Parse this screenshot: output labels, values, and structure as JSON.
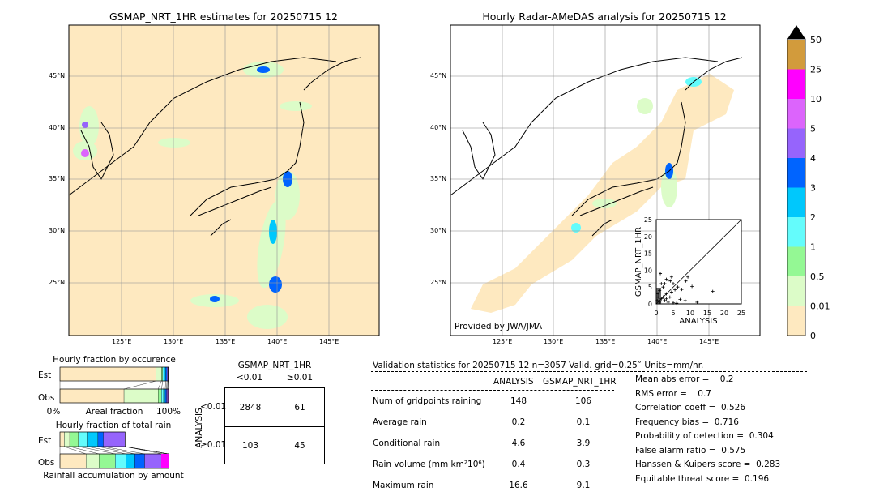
{
  "left_map": {
    "title": "GSMAP_NRT_1HR estimates for 20250715 12"
  },
  "right_map": {
    "title": "Hourly Radar-AMeDAS analysis for 20250715 12",
    "credit": "Provided by JWA/JMA"
  },
  "lat_labels": [
    "45°N",
    "40°N",
    "35°N",
    "30°N",
    "25°N"
  ],
  "lon_labels": [
    "125°E",
    "130°E",
    "135°E",
    "140°E",
    "145°E"
  ],
  "colorbar": {
    "labels": [
      "0",
      "0.01",
      "0.5",
      "1",
      "2",
      "3",
      "4",
      "5",
      "10",
      "25",
      "50"
    ],
    "colors": [
      "#fee9c0",
      "#dcfcc8",
      "#94f894",
      "#64fcfc",
      "#00c8fc",
      "#0064ff",
      "#9664fc",
      "#dc64fc",
      "#ff00ff",
      "#d29b3c"
    ],
    "extend_color": "#000000"
  },
  "chart_data": [
    {
      "type": "scatter",
      "xlabel": "ANALYSIS",
      "ylabel": "GSMAP_NRT_1HR",
      "xlim": [
        0,
        25
      ],
      "ylim": [
        0,
        25
      ],
      "xticks": [
        "0",
        "5",
        "10",
        "15",
        "20",
        "25"
      ],
      "yticks": [
        "0",
        "5",
        "10",
        "15",
        "20",
        "25"
      ],
      "points": [
        [
          1.2,
          9
        ],
        [
          3,
          7.3
        ],
        [
          3.5,
          7
        ],
        [
          4.5,
          8
        ],
        [
          4.2,
          6.8
        ],
        [
          5,
          6
        ],
        [
          9.3,
          8
        ],
        [
          8.7,
          6.8
        ],
        [
          10.5,
          5.2
        ],
        [
          16.6,
          3.7
        ],
        [
          7.5,
          4.3
        ],
        [
          5.5,
          4.2
        ],
        [
          4.5,
          3.5
        ],
        [
          6.3,
          5
        ],
        [
          2.5,
          6
        ],
        [
          1.5,
          6
        ],
        [
          2,
          5
        ],
        [
          7,
          1.3
        ],
        [
          8.5,
          1
        ],
        [
          12,
          0.5
        ],
        [
          3,
          3
        ],
        [
          2,
          2
        ],
        [
          1,
          4
        ],
        [
          0.5,
          3
        ],
        [
          1.5,
          1.5
        ],
        [
          2.5,
          1
        ],
        [
          3.5,
          0.5
        ],
        [
          5,
          0.3
        ],
        [
          6,
          0.2
        ],
        [
          0.3,
          1
        ],
        [
          0.5,
          2
        ],
        [
          1,
          0.5
        ],
        [
          4,
          2
        ],
        [
          3,
          1.5
        ]
      ]
    },
    {
      "type": "bar",
      "title": "Hourly fraction by occurence",
      "xlabel": "Areal fraction",
      "xtick_left": "0%",
      "xtick_right": "100%",
      "categories": [
        "Est",
        "Obs"
      ],
      "series_colors": [
        "#fee9c0",
        "#dcfcc8",
        "#94f894",
        "#64fcfc",
        "#00c8fc",
        "#0064ff",
        "#9664fc",
        "#dc64fc",
        "#ff00ff",
        "#d29b3c"
      ],
      "values": {
        "Est": [
          0.885,
          0.05,
          0.012,
          0.015,
          0.012,
          0.012,
          0.008,
          0.004,
          0.001,
          0.001
        ],
        "Obs": [
          0.59,
          0.315,
          0.03,
          0.02,
          0.015,
          0.012,
          0.008,
          0.007,
          0.002,
          0.001
        ]
      }
    },
    {
      "type": "bar",
      "title": "Hourly fraction of total rain",
      "xlabel": "Rainfall accumulation by amount",
      "categories": [
        "Est",
        "Obs"
      ],
      "values": {
        "Est": [
          0.04,
          0.05,
          0.08,
          0.08,
          0.1,
          0.05,
          0.2,
          0,
          0,
          0
        ],
        "Obs": [
          0.24,
          0.12,
          0.15,
          0.1,
          0.08,
          0.09,
          0.16,
          0.06,
          0,
          0
        ]
      }
    }
  ],
  "contingency": {
    "title": "GSMAP_NRT_1HR",
    "col_labels": [
      "<0.01",
      "≥0.01"
    ],
    "row_title": "ANALYSIS",
    "row_labels": [
      "<0.01",
      "≥0.01"
    ],
    "values": [
      [
        "2848",
        "61"
      ],
      [
        "103",
        "45"
      ]
    ]
  },
  "stats": {
    "header": "Validation statistics for 20250715 12  n=3057 Valid. grid=0.25˚ Units=mm/hr.",
    "col_headers": [
      "ANALYSIS",
      "GSMAP_NRT_1HR"
    ],
    "rows": [
      {
        "label": "Num of gridpoints raining",
        "a": "148",
        "g": "106"
      },
      {
        "label": "Average rain",
        "a": "0.2",
        "g": "0.1"
      },
      {
        "label": "Conditional rain",
        "a": "4.6",
        "g": "3.9"
      },
      {
        "label": "Rain volume (mm km²10⁶)",
        "a": "0.4",
        "g": "0.3"
      },
      {
        "label": "Maximum rain",
        "a": "16.6",
        "g": "9.1"
      }
    ],
    "scores": [
      "Mean abs error =    0.2",
      "RMS error =    0.7",
      "Correlation coeff =  0.526",
      "Frequency bias =  0.716",
      "Probability of detection =  0.304",
      "False alarm ratio =  0.575",
      "Hanssen & Kuipers score =  0.283",
      "Equitable threat score =  0.196"
    ]
  }
}
